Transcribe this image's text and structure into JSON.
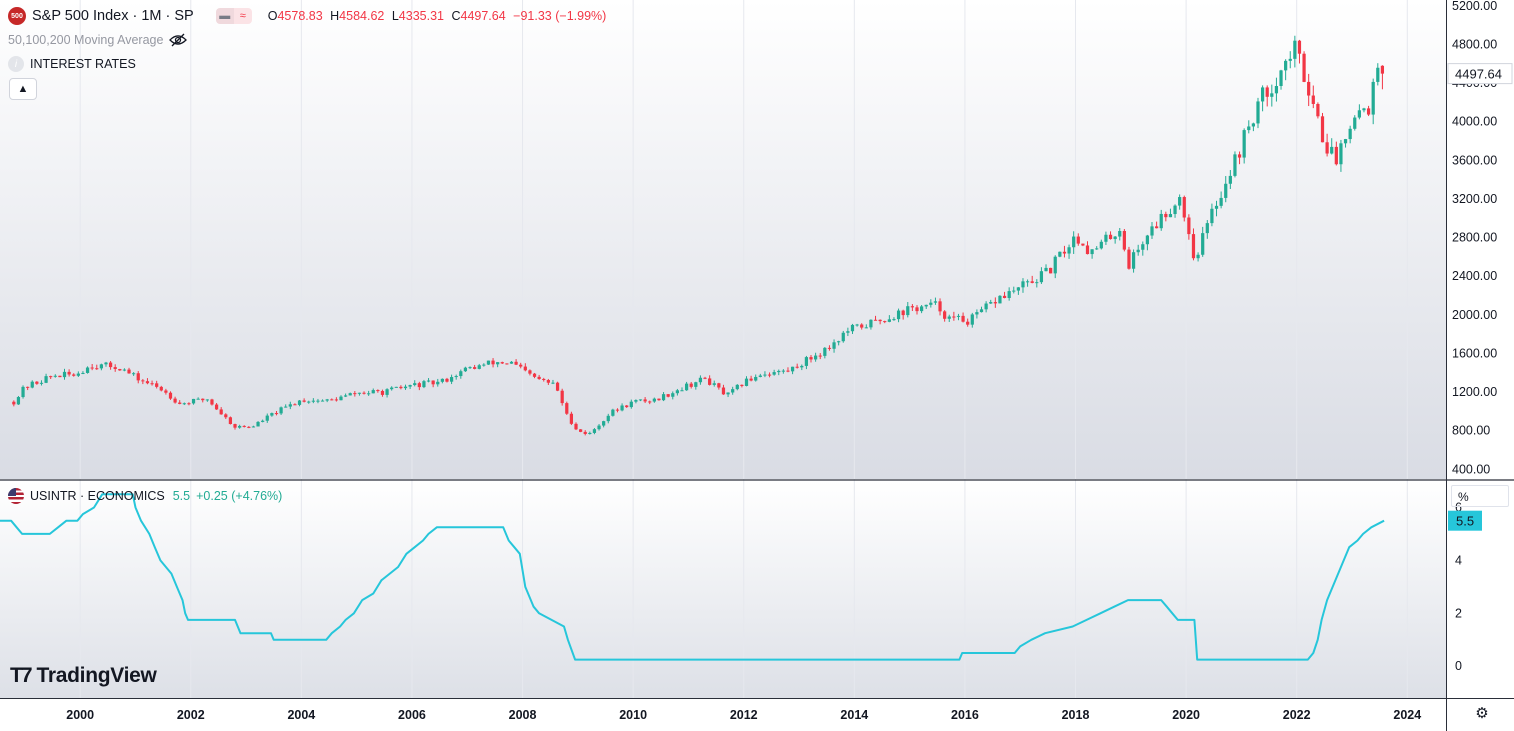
{
  "header": {
    "symbol_badge": "500",
    "title": "S&P 500 Index · 1M · SP",
    "ohlc": {
      "open_label": "O",
      "open": "4578.83",
      "high_label": "H",
      "high": "4584.62",
      "low_label": "L",
      "low": "4335.31",
      "close_label": "C",
      "close": "4497.64",
      "change": "−91.33 (−1.99%)"
    },
    "indicators": [
      "50,100,200 Moving Average",
      "INTEREST RATES"
    ],
    "collapse_button": "^"
  },
  "lower_pane": {
    "symbol": "USINTR · ECONOMICS",
    "value": "5.5",
    "change": "+0.25 (+4.76%)",
    "scale_unit": "%"
  },
  "branding": {
    "logo_text": "TradingView"
  },
  "colors": {
    "up": "#22ab94",
    "down": "#f23645",
    "rate_line": "#26c6da",
    "badge": "#c62828",
    "price_tag_bg": "#ffffff",
    "rate_tag_bg": "#26c6da"
  },
  "icons": [
    "eye-slash-icon",
    "info-icon",
    "chevron-up-icon",
    "us-flag-icon",
    "settings-gear-icon"
  ],
  "chart_data": [
    {
      "type": "candlestick",
      "title": "S&P 500 Index · 1M · SP",
      "interval": "monthly",
      "ylim": [
        300,
        5260
      ],
      "y_ticks": [
        400,
        800,
        1200,
        1600,
        2000,
        2400,
        2800,
        3200,
        3600,
        4000,
        4400,
        4800,
        5200
      ],
      "y_tick_labels": [
        "400.00",
        "800.00",
        "1200.00",
        "1600.00",
        "2000.00",
        "2400.00",
        "2800.00",
        "3200.00",
        "3600.00",
        "4000.00",
        "4400.00",
        "4800.00",
        "5200.00"
      ],
      "last_price_label": "4497.64",
      "last_price": 4497.64,
      "price_path": [
        [
          1998.8,
          1100
        ],
        [
          1999.0,
          1250
        ],
        [
          1999.5,
          1370
        ],
        [
          1999.9,
          1380
        ],
        [
          2000.2,
          1480
        ],
        [
          2000.7,
          1460
        ],
        [
          2001.0,
          1350
        ],
        [
          2001.5,
          1220
        ],
        [
          2001.8,
          1080
        ],
        [
          2002.3,
          1130
        ],
        [
          2002.6,
          950
        ],
        [
          2002.8,
          840
        ],
        [
          2003.1,
          840
        ],
        [
          2003.5,
          980
        ],
        [
          2004.0,
          1120
        ],
        [
          2004.5,
          1110
        ],
        [
          2005.0,
          1190
        ],
        [
          2005.5,
          1200
        ],
        [
          2006.0,
          1270
        ],
        [
          2006.5,
          1300
        ],
        [
          2007.0,
          1440
        ],
        [
          2007.5,
          1510
        ],
        [
          2007.8,
          1500
        ],
        [
          2008.2,
          1350
        ],
        [
          2008.6,
          1270
        ],
        [
          2008.8,
          960
        ],
        [
          2009.0,
          800
        ],
        [
          2009.2,
          760
        ],
        [
          2009.6,
          990
        ],
        [
          2010.0,
          1100
        ],
        [
          2010.4,
          1120
        ],
        [
          2010.9,
          1250
        ],
        [
          2011.3,
          1340
        ],
        [
          2011.7,
          1160
        ],
        [
          2012.0,
          1300
        ],
        [
          2012.3,
          1390
        ],
        [
          2012.8,
          1420
        ],
        [
          2013.5,
          1650
        ],
        [
          2013.9,
          1840
        ],
        [
          2014.5,
          1950
        ],
        [
          2015.0,
          2060
        ],
        [
          2015.5,
          2100
        ],
        [
          2015.7,
          1960
        ],
        [
          2016.1,
          1940
        ],
        [
          2016.6,
          2170
        ],
        [
          2017.0,
          2280
        ],
        [
          2017.5,
          2440
        ],
        [
          2018.0,
          2820
        ],
        [
          2018.3,
          2640
        ],
        [
          2018.8,
          2900
        ],
        [
          2018.95,
          2510
        ],
        [
          2019.3,
          2840
        ],
        [
          2019.9,
          3230
        ],
        [
          2020.15,
          2580
        ],
        [
          2020.5,
          3100
        ],
        [
          2020.9,
          3620
        ],
        [
          2021.3,
          4180
        ],
        [
          2021.8,
          4600
        ],
        [
          2021.95,
          4770
        ],
        [
          2022.2,
          4400
        ],
        [
          2022.5,
          3800
        ],
        [
          2022.7,
          3590
        ],
        [
          2023.0,
          4080
        ],
        [
          2023.3,
          4170
        ],
        [
          2023.5,
          4590
        ],
        [
          2023.58,
          4497.64
        ]
      ],
      "last_candle": {
        "open": 4578.83,
        "high": 4584.62,
        "low": 4335.31,
        "close": 4497.64
      }
    },
    {
      "type": "line",
      "title": "USINTR · ECONOMICS",
      "ylim": [
        -1.2,
        7.0
      ],
      "y_ticks": [
        0,
        2,
        4,
        6
      ],
      "y_tick_labels": [
        "0",
        "2",
        "4",
        "6"
      ],
      "last_value_label": "5.5",
      "x_ticks": [
        2000,
        2002,
        2004,
        2006,
        2008,
        2010,
        2012,
        2014,
        2016,
        2018,
        2020,
        2022,
        2024
      ],
      "x_tick_labels": [
        "2000",
        "2002",
        "2004",
        "2006",
        "2008",
        "2010",
        "2012",
        "2014",
        "2016",
        "2018",
        "2020",
        "2022",
        "2024"
      ],
      "xlim": [
        1998.55,
        2024.7
      ],
      "points": [
        [
          1998.55,
          5.5
        ],
        [
          1998.75,
          5.5
        ],
        [
          1998.85,
          5.25
        ],
        [
          1998.95,
          5.0
        ],
        [
          1999.45,
          5.0
        ],
        [
          1999.6,
          5.25
        ],
        [
          1999.75,
          5.5
        ],
        [
          1999.95,
          5.5
        ],
        [
          2000.05,
          5.75
        ],
        [
          2000.25,
          6.0
        ],
        [
          2000.4,
          6.5
        ],
        [
          2000.95,
          6.5
        ],
        [
          2001.0,
          6.0
        ],
        [
          2001.1,
          5.5
        ],
        [
          2001.25,
          5.0
        ],
        [
          2001.35,
          4.5
        ],
        [
          2001.45,
          4.0
        ],
        [
          2001.65,
          3.5
        ],
        [
          2001.75,
          3.0
        ],
        [
          2001.85,
          2.5
        ],
        [
          2001.9,
          2.0
        ],
        [
          2001.95,
          1.75
        ],
        [
          2002.8,
          1.75
        ],
        [
          2002.9,
          1.25
        ],
        [
          2003.45,
          1.25
        ],
        [
          2003.5,
          1.0
        ],
        [
          2004.45,
          1.0
        ],
        [
          2004.55,
          1.25
        ],
        [
          2004.7,
          1.5
        ],
        [
          2004.8,
          1.75
        ],
        [
          2004.95,
          2.0
        ],
        [
          2005.1,
          2.5
        ],
        [
          2005.3,
          2.75
        ],
        [
          2005.45,
          3.25
        ],
        [
          2005.6,
          3.5
        ],
        [
          2005.75,
          3.75
        ],
        [
          2005.9,
          4.25
        ],
        [
          2006.05,
          4.5
        ],
        [
          2006.2,
          4.75
        ],
        [
          2006.3,
          5.0
        ],
        [
          2006.45,
          5.25
        ],
        [
          2007.65,
          5.25
        ],
        [
          2007.75,
          4.75
        ],
        [
          2007.85,
          4.5
        ],
        [
          2007.95,
          4.25
        ],
        [
          2008.05,
          3.0
        ],
        [
          2008.2,
          2.25
        ],
        [
          2008.3,
          2.0
        ],
        [
          2008.75,
          1.5
        ],
        [
          2008.82,
          1.0
        ],
        [
          2008.95,
          0.25
        ],
        [
          2015.9,
          0.25
        ],
        [
          2015.95,
          0.5
        ],
        [
          2016.9,
          0.5
        ],
        [
          2017.0,
          0.75
        ],
        [
          2017.2,
          1.0
        ],
        [
          2017.45,
          1.25
        ],
        [
          2017.95,
          1.5
        ],
        [
          2018.2,
          1.75
        ],
        [
          2018.45,
          2.0
        ],
        [
          2018.7,
          2.25
        ],
        [
          2018.95,
          2.5
        ],
        [
          2019.55,
          2.5
        ],
        [
          2019.65,
          2.25
        ],
        [
          2019.75,
          2.0
        ],
        [
          2019.85,
          1.75
        ],
        [
          2020.15,
          1.75
        ],
        [
          2020.2,
          0.25
        ],
        [
          2022.2,
          0.25
        ],
        [
          2022.3,
          0.5
        ],
        [
          2022.38,
          1.0
        ],
        [
          2022.45,
          1.75
        ],
        [
          2022.55,
          2.5
        ],
        [
          2022.7,
          3.25
        ],
        [
          2022.85,
          4.0
        ],
        [
          2022.95,
          4.5
        ],
        [
          2023.1,
          4.75
        ],
        [
          2023.2,
          5.0
        ],
        [
          2023.35,
          5.25
        ],
        [
          2023.58,
          5.5
        ]
      ]
    }
  ]
}
